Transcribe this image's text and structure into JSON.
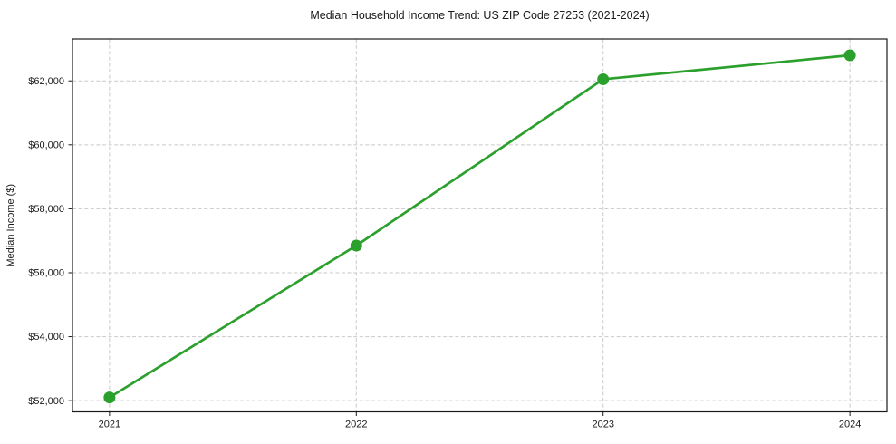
{
  "chart_data": {
    "type": "line",
    "title": "Median Household Income Trend: US ZIP Code 27253 (2021-2024)",
    "xlabel": "",
    "ylabel": "Median Income ($)",
    "series": [
      {
        "name": "Median Household Income",
        "x": [
          2021,
          2022,
          2023,
          2024
        ],
        "values": [
          52100,
          56850,
          62050,
          62800
        ]
      }
    ],
    "x_tick_values": [
      2021,
      2022,
      2023,
      2024
    ],
    "x_tick_labels": [
      "2021",
      "2022",
      "2023",
      "2024"
    ],
    "y_tick_values": [
      52000,
      54000,
      56000,
      58000,
      60000,
      62000
    ],
    "y_tick_labels": [
      "$52,000",
      "$54,000",
      "$56,000",
      "$58,000",
      "$60,000",
      "$62,000"
    ],
    "xlim": [
      2020.85,
      2024.15
    ],
    "ylim": [
      51650,
      63310
    ],
    "grid": true,
    "grid_style": "dashed",
    "legend_position": "none",
    "line_color": "#2ca02c",
    "marker": "circle",
    "marker_radius": 6.5,
    "background_color": "#ffffff",
    "text_color": "#1a1a1a",
    "grid_color": "#c9c9c9"
  }
}
